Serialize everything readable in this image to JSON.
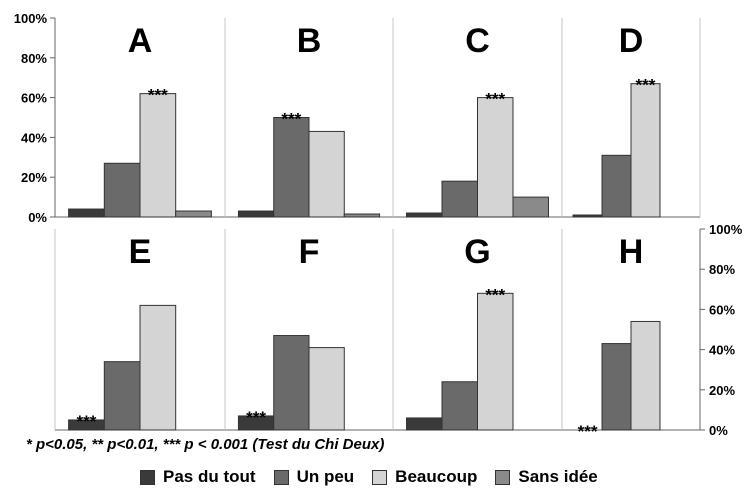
{
  "chart_data": {
    "type": "bar",
    "categories": [
      "Pas du tout",
      "Un peu",
      "Beaucoup",
      "Sans idée"
    ],
    "y_ticks": [
      "0%",
      "20%",
      "40%",
      "60%",
      "80%",
      "100%"
    ],
    "ylim": [
      0,
      100
    ],
    "grid": false,
    "legend_position": "bottom",
    "colors": {
      "Pas du tout": "#3a3a3a",
      "Un peu": "#6a6a6a",
      "Beaucoup": "#d4d4d4",
      "Sans idée": "#8a8a8a"
    },
    "panels": [
      {
        "label": "A",
        "values": [
          4,
          27,
          62,
          3
        ],
        "sig_label": "***",
        "sig_on": "Beaucoup"
      },
      {
        "label": "B",
        "values": [
          3,
          50,
          43,
          1.5
        ],
        "sig_label": "***",
        "sig_on": "Un peu"
      },
      {
        "label": "C",
        "values": [
          2,
          18,
          60,
          10
        ],
        "sig_label": "***",
        "sig_on": "Beaucoup"
      },
      {
        "label": "D",
        "values": [
          1,
          31,
          67,
          0
        ],
        "sig_label": "***",
        "sig_on": "Beaucoup"
      },
      {
        "label": "E",
        "values": [
          5,
          34,
          62,
          0
        ],
        "sig_label": "***",
        "sig_on": "Pas du tout"
      },
      {
        "label": "F",
        "values": [
          7,
          47,
          41,
          0
        ],
        "sig_label": "***",
        "sig_on": "Pas du tout"
      },
      {
        "label": "G",
        "values": [
          6,
          24,
          68,
          0
        ],
        "sig_label": "***",
        "sig_on": "Beaucoup"
      },
      {
        "label": "H",
        "values": [
          0,
          43,
          54,
          0
        ],
        "sig_label": "***",
        "sig_on": "Pas du tout"
      }
    ],
    "note": "* p<0.05, ** p<0.01, *** p < 0.001 (Test du Chi Deux)"
  }
}
